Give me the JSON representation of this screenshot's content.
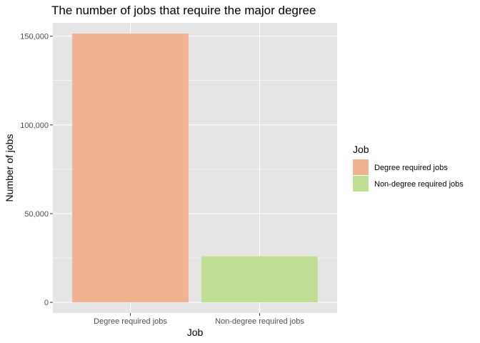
{
  "chart_data": {
    "type": "bar",
    "title": "The number of jobs that require the major degree",
    "xlabel": "Job",
    "ylabel": "Number of jobs",
    "categories": [
      "Degree required jobs",
      "Non-degree required jobs"
    ],
    "values": [
      151500,
      26000
    ],
    "colors": [
      "#efb392",
      "#bfe093"
    ],
    "ylim": [
      -6000,
      157500
    ],
    "y_ticks": [
      0,
      50000,
      100000,
      150000
    ],
    "y_tick_labels": [
      "0",
      "50,000",
      "100,000",
      "150,000"
    ],
    "grid": true,
    "panel_background": "#e5e5e5",
    "grid_color": "#ffffff",
    "legend": {
      "title": "Job",
      "position": "right",
      "entries": [
        "Degree required jobs",
        "Non-degree required jobs"
      ]
    }
  }
}
